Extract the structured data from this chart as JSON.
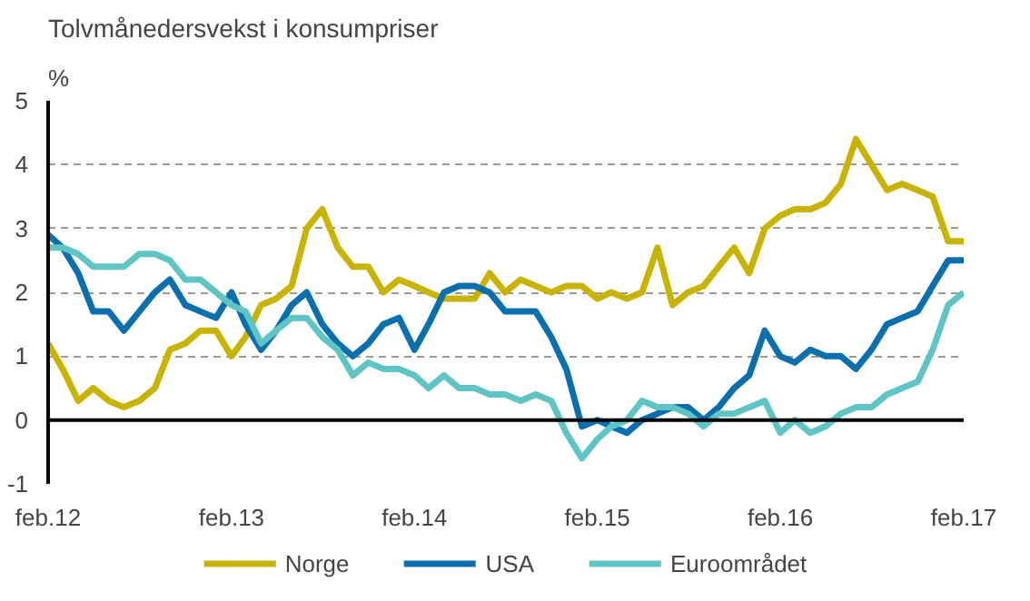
{
  "chart_data": {
    "type": "line",
    "title": "Tolvmånedersvekst i konsumpriser",
    "ylabel": "%",
    "x": [
      "2012-02",
      "2012-03",
      "2012-04",
      "2012-05",
      "2012-06",
      "2012-07",
      "2012-08",
      "2012-09",
      "2012-10",
      "2012-11",
      "2012-12",
      "2013-01",
      "2013-02",
      "2013-03",
      "2013-04",
      "2013-05",
      "2013-06",
      "2013-07",
      "2013-08",
      "2013-09",
      "2013-10",
      "2013-11",
      "2013-12",
      "2014-01",
      "2014-02",
      "2014-03",
      "2014-04",
      "2014-05",
      "2014-06",
      "2014-07",
      "2014-08",
      "2014-09",
      "2014-10",
      "2014-11",
      "2014-12",
      "2015-01",
      "2015-02",
      "2015-03",
      "2015-04",
      "2015-05",
      "2015-06",
      "2015-07",
      "2015-08",
      "2015-09",
      "2015-10",
      "2015-11",
      "2015-12",
      "2016-01",
      "2016-02",
      "2016-03",
      "2016-04",
      "2016-05",
      "2016-06",
      "2016-07",
      "2016-08",
      "2016-09",
      "2016-10",
      "2016-11",
      "2016-12",
      "2017-01",
      "2017-02"
    ],
    "series": [
      {
        "name": "Norge",
        "color": "#c8b400",
        "values": [
          1.2,
          0.8,
          0.3,
          0.5,
          0.3,
          0.2,
          0.3,
          0.5,
          1.1,
          1.2,
          1.4,
          1.4,
          1.0,
          1.3,
          1.8,
          1.9,
          2.1,
          3.0,
          3.3,
          2.7,
          2.4,
          2.4,
          2.0,
          2.2,
          2.1,
          2.0,
          1.9,
          1.9,
          1.9,
          2.3,
          2.0,
          2.2,
          2.1,
          2.0,
          2.1,
          2.1,
          1.9,
          2.0,
          1.9,
          2.0,
          2.7,
          1.8,
          2.0,
          2.1,
          2.4,
          2.7,
          2.3,
          3.0,
          3.2,
          3.3,
          3.3,
          3.4,
          3.7,
          4.4,
          4.0,
          3.6,
          3.7,
          3.6,
          3.5,
          2.8,
          2.8
        ]
      },
      {
        "name": "USA",
        "color": "#0a6fad",
        "values": [
          2.9,
          2.7,
          2.3,
          1.7,
          1.7,
          1.4,
          1.7,
          2.0,
          2.2,
          1.8,
          1.7,
          1.6,
          2.0,
          1.5,
          1.1,
          1.4,
          1.8,
          2.0,
          1.5,
          1.2,
          1.0,
          1.2,
          1.5,
          1.6,
          1.1,
          1.5,
          2.0,
          2.1,
          2.1,
          2.0,
          1.7,
          1.7,
          1.7,
          1.3,
          0.8,
          -0.1,
          0.0,
          -0.1,
          -0.2,
          0.0,
          0.1,
          0.2,
          0.2,
          0.0,
          0.2,
          0.5,
          0.7,
          1.4,
          1.0,
          0.9,
          1.1,
          1.0,
          1.0,
          0.8,
          1.1,
          1.5,
          1.6,
          1.7,
          2.1,
          2.5,
          2.5
        ]
      },
      {
        "name": "Euroområdet",
        "color": "#5ec4c4",
        "values": [
          2.7,
          2.7,
          2.6,
          2.4,
          2.4,
          2.4,
          2.6,
          2.6,
          2.5,
          2.2,
          2.2,
          2.0,
          1.8,
          1.7,
          1.2,
          1.4,
          1.6,
          1.6,
          1.3,
          1.1,
          0.7,
          0.9,
          0.8,
          0.8,
          0.7,
          0.5,
          0.7,
          0.5,
          0.5,
          0.4,
          0.4,
          0.3,
          0.4,
          0.3,
          -0.2,
          -0.6,
          -0.3,
          -0.1,
          0.0,
          0.3,
          0.2,
          0.2,
          0.1,
          -0.1,
          0.1,
          0.1,
          0.2,
          0.3,
          -0.2,
          0.0,
          -0.2,
          -0.1,
          0.1,
          0.2,
          0.2,
          0.4,
          0.5,
          0.6,
          1.1,
          1.8,
          2.0
        ]
      }
    ],
    "xlim": [
      "2012-02",
      "2017-02"
    ],
    "xticks": [
      {
        "value": "2012-02",
        "label": "feb.12"
      },
      {
        "value": "2013-02",
        "label": "feb.13"
      },
      {
        "value": "2014-02",
        "label": "feb.14"
      },
      {
        "value": "2015-02",
        "label": "feb.15"
      },
      {
        "value": "2016-02",
        "label": "feb.16"
      },
      {
        "value": "2017-02",
        "label": "feb.17"
      }
    ],
    "ylim": [
      -1,
      5
    ],
    "yticks": [
      -1,
      0,
      1,
      2,
      3,
      4,
      5
    ],
    "ref_lines": [
      {
        "axis": "y",
        "value": 0,
        "color": "#000000",
        "line_style": "solid"
      }
    ],
    "grid": "y",
    "legend": "bottom",
    "marker": "none",
    "line_style": "solid"
  }
}
